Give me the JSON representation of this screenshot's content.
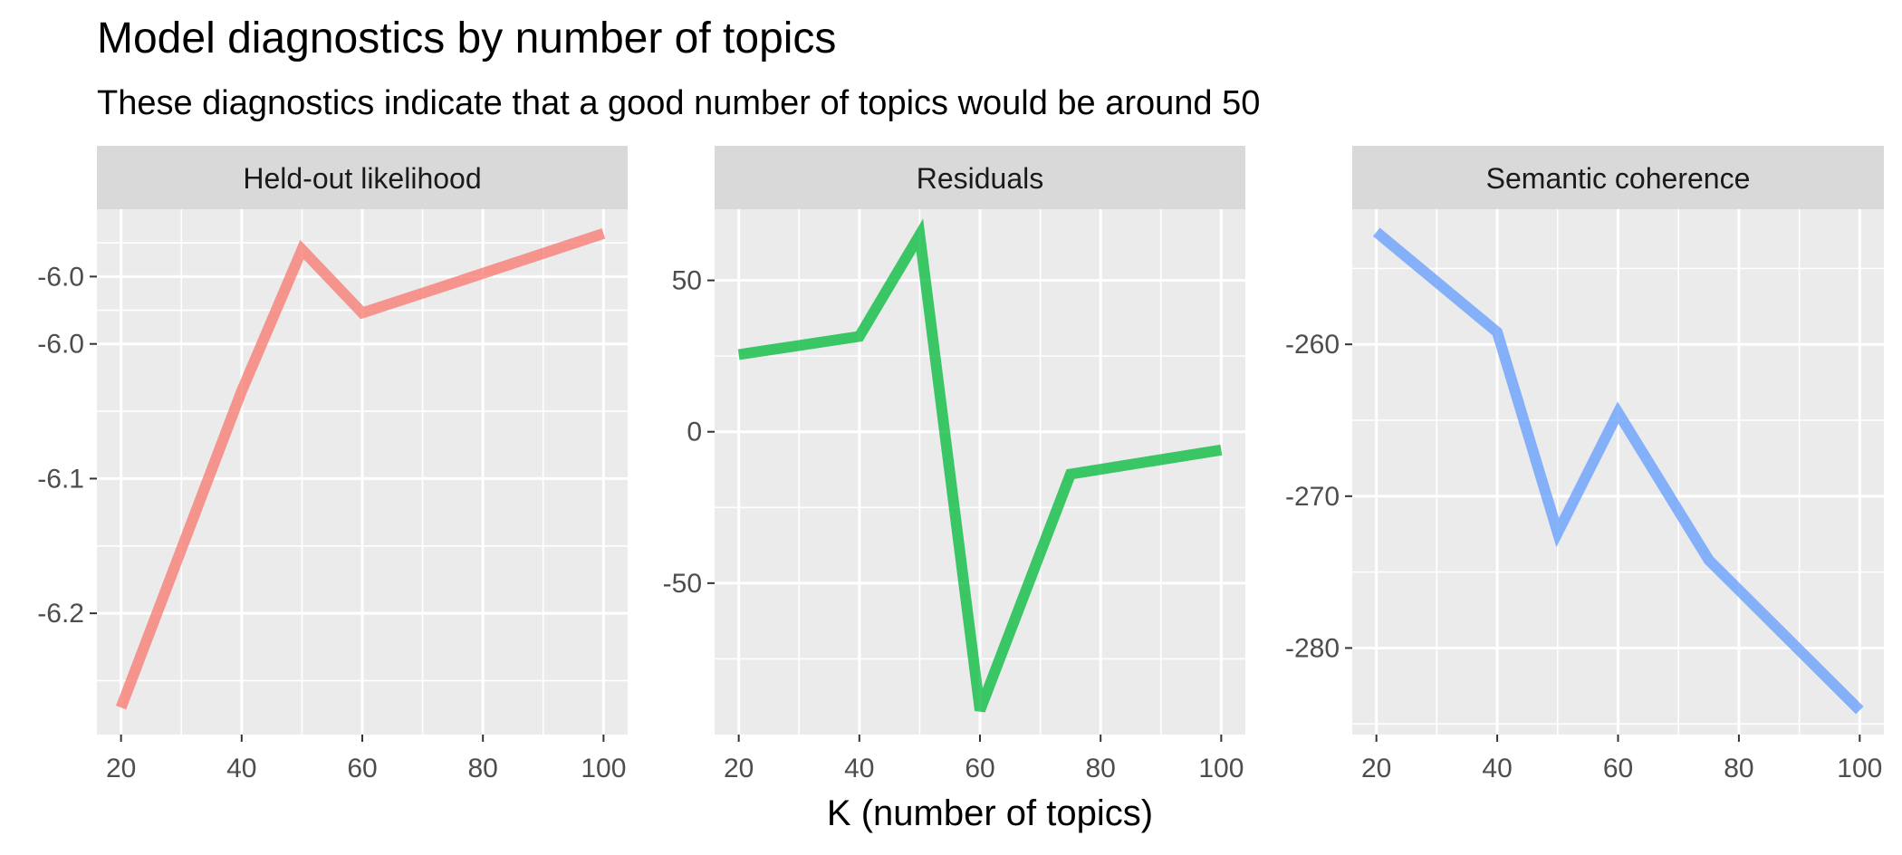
{
  "chart_data": {
    "type": "line",
    "title": "Model diagnostics by number of topics",
    "subtitle": "These diagnostics indicate that a good number of topics would be around 50",
    "xlabel": "K (number of topics)",
    "ylabel": "",
    "grid": true,
    "legend": "none",
    "panels": [
      {
        "name": "Held-out likelihood",
        "color": "#F8766D",
        "x": [
          20,
          40,
          50,
          60,
          75,
          100
        ],
        "values": [
          -6.27,
          -6.035,
          -5.93,
          -5.977,
          -5.955,
          -5.918
        ],
        "xlim": [
          16,
          104
        ],
        "ylim": [
          -6.29,
          -5.9
        ],
        "xticks": [
          20,
          40,
          60,
          80,
          100
        ],
        "xtick_labels": [
          "20",
          "40",
          "60",
          "80",
          "100"
        ],
        "yticks": [
          -6.2,
          -6.1,
          -6.0,
          -5.95
        ],
        "ytick_labels": [
          "-6.2",
          "-6.1",
          "-6.0",
          "-6.0"
        ],
        "yminor": [
          -6.25,
          -6.15,
          -6.05,
          -5.975,
          -5.925
        ]
      },
      {
        "name": "Residuals",
        "color": "#00BA38",
        "x": [
          20,
          40,
          50,
          60,
          75,
          100
        ],
        "values": [
          25.5,
          31.5,
          65,
          -92,
          -14,
          -6
        ],
        "xlim": [
          16,
          104
        ],
        "ylim": [
          -100,
          73.5
        ],
        "xticks": [
          20,
          40,
          60,
          80,
          100
        ],
        "xtick_labels": [
          "20",
          "40",
          "60",
          "80",
          "100"
        ],
        "yticks": [
          -50,
          0,
          50
        ],
        "ytick_labels": [
          "-50",
          "0",
          "50"
        ],
        "yminor": [
          -75,
          -25,
          25
        ]
      },
      {
        "name": "Semantic coherence",
        "color": "#619CFF",
        "x": [
          20,
          40,
          50,
          60,
          75,
          100
        ],
        "values": [
          -252.6,
          -259.2,
          -272.4,
          -264.5,
          -274.2,
          -284.1
        ],
        "xlim": [
          16,
          104
        ],
        "ylim": [
          -285.7,
          -251.1
        ],
        "xticks": [
          20,
          40,
          60,
          80,
          100
        ],
        "xtick_labels": [
          "20",
          "40",
          "60",
          "80",
          "100"
        ],
        "yticks": [
          -280,
          -270,
          -260
        ],
        "ytick_labels": [
          "-280",
          "-270",
          "-260"
        ],
        "yminor": [
          -285,
          -275,
          -265,
          -255
        ]
      }
    ]
  }
}
